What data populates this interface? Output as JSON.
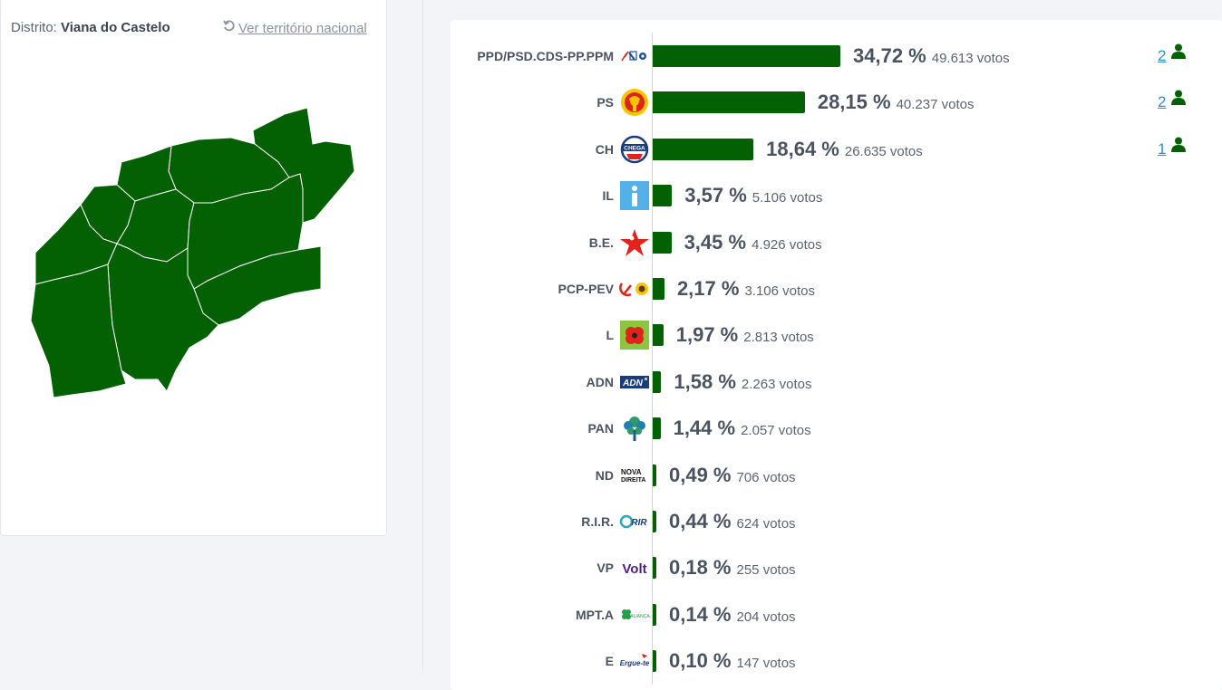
{
  "header": {
    "district_label": "Distrito:",
    "district_name": "Viana do Castelo",
    "national_link": "Ver território nacional"
  },
  "results": [
    {
      "party": "PPD/PSD.CDS-PP.PPM",
      "logo": "ad-coalition-logo",
      "pct_value": 34.72,
      "pct": "34,72 %",
      "votes": "49.613 votos",
      "seats": "2"
    },
    {
      "party": "PS",
      "logo": "ps-fist-rose-logo",
      "pct_value": 28.15,
      "pct": "28,15 %",
      "votes": "40.237 votos",
      "seats": "2"
    },
    {
      "party": "CH",
      "logo": "chega-logo",
      "pct_value": 18.64,
      "pct": "18,64 %",
      "votes": "26.635 votos",
      "seats": "1"
    },
    {
      "party": "IL",
      "logo": "iniciativa-liberal-logo",
      "pct_value": 3.57,
      "pct": "3,57 %",
      "votes": "5.106 votos"
    },
    {
      "party": "B.E.",
      "logo": "bloco-star-logo",
      "pct_value": 3.45,
      "pct": "3,45 %",
      "votes": "4.926 votos"
    },
    {
      "party": "PCP-PEV",
      "logo": "cdu-hammer-sunflower-logo",
      "pct_value": 2.17,
      "pct": "2,17 %",
      "votes": "3.106 votos"
    },
    {
      "party": "L",
      "logo": "livre-poppy-logo",
      "pct_value": 1.97,
      "pct": "1,97 %",
      "votes": "2.813 votos"
    },
    {
      "party": "ADN",
      "logo": "adn-logo",
      "pct_value": 1.58,
      "pct": "1,58 %",
      "votes": "2.263 votos"
    },
    {
      "party": "PAN",
      "logo": "pan-tree-logo",
      "pct_value": 1.44,
      "pct": "1,44 %",
      "votes": "2.057 votos"
    },
    {
      "party": "ND",
      "logo": "nova-direita-logo",
      "pct_value": 0.49,
      "pct": "0,49 %",
      "votes": "706 votos"
    },
    {
      "party": "R.I.R.",
      "logo": "rir-logo",
      "pct_value": 0.44,
      "pct": "0,44 %",
      "votes": "624 votos"
    },
    {
      "party": "VP",
      "logo": "volt-logo",
      "pct_value": 0.18,
      "pct": "0,18 %",
      "votes": "255 votos"
    },
    {
      "party": "MPT.A",
      "logo": "alianca-clover-logo",
      "pct_value": 0.14,
      "pct": "0,14 %",
      "votes": "204 votos"
    },
    {
      "party": "E",
      "logo": "ergue-te-logo",
      "pct_value": 0.1,
      "pct": "0,10 %",
      "votes": "147 votos"
    }
  ],
  "logo_text": {
    "chega": "CHEGA",
    "adn": "ADN",
    "nd_line1": "NOVA",
    "nd_line2": "DIREITA",
    "rir": "RIR",
    "volt": "Volt",
    "alianca": "ALIANÇA",
    "ergue": "Ergue-te"
  },
  "colors": {
    "bar": "#036003",
    "map_fill": "#036003",
    "link": "#2b8fd6",
    "text": "#4a5461"
  }
}
